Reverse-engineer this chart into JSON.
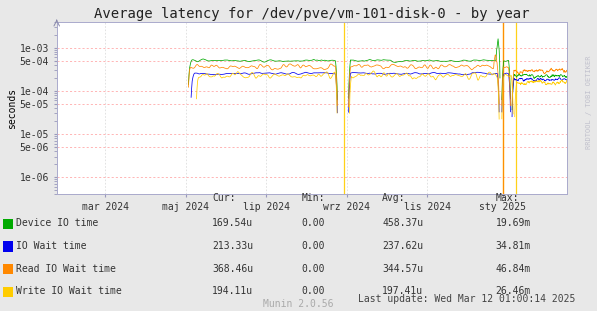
{
  "title": "Average latency for /dev/pve/vm-101-disk-0 - by year",
  "ylabel": "seconds",
  "xlabel_ticks": [
    "mar 2024",
    "maj 2024",
    "lip 2024",
    "wrz 2024",
    "lis 2024",
    "sty 2025"
  ],
  "bg_color": "#e8e8e8",
  "plot_bg_color": "#ffffff",
  "grid_color_h": "#ff9999",
  "grid_color_v": "#cccccc",
  "series_colors": {
    "device": "#00aa00",
    "io_wait": "#0000ee",
    "read_io": "#ff8800",
    "write_io": "#ffcc00"
  },
  "legend": [
    {
      "label": "Device IO time",
      "color": "#00aa00",
      "cur": "169.54u",
      "min": "0.00",
      "avg": "458.37u",
      "max": "19.69m"
    },
    {
      "label": "IO Wait time",
      "color": "#0000ee",
      "cur": "213.33u",
      "min": "0.00",
      "avg": "237.62u",
      "max": "34.81m"
    },
    {
      "label": "Read IO Wait time",
      "color": "#ff8800",
      "cur": "368.46u",
      "min": "0.00",
      "avg": "344.57u",
      "max": "46.84m"
    },
    {
      "label": "Write IO Wait time",
      "color": "#ffcc00",
      "cur": "194.11u",
      "min": "0.00",
      "avg": "197.41u",
      "max": "26.46m"
    }
  ],
  "footer": "Last update: Wed Mar 12 01:00:14 2025",
  "munin_label": "Munin 2.0.56",
  "watermark": "RRDTOOL / TOBI OETIKER",
  "title_fontsize": 10,
  "axis_fontsize": 7,
  "legend_fontsize": 7,
  "watermark_fontsize": 5
}
